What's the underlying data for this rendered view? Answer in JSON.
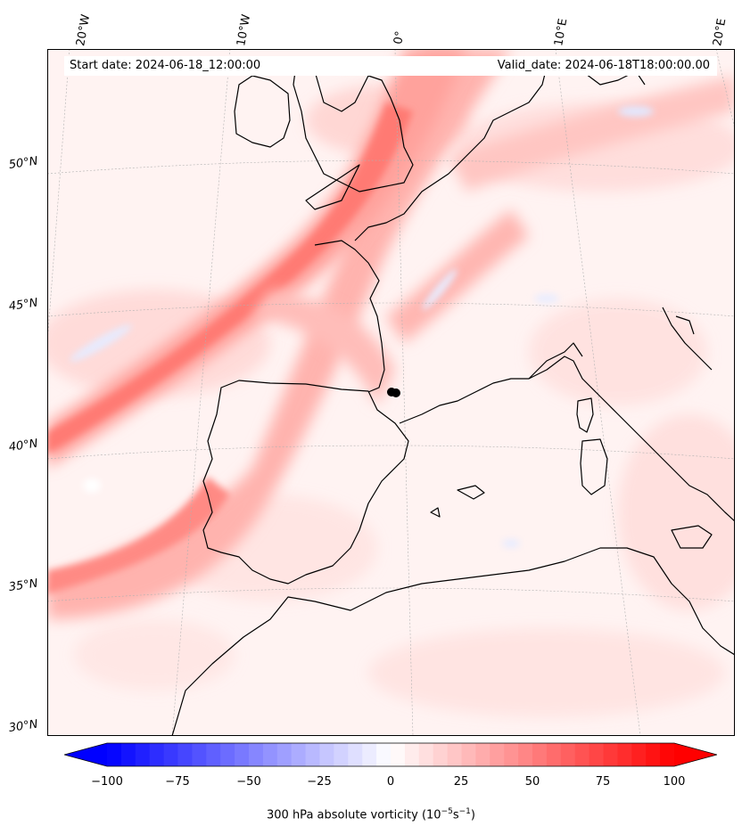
{
  "header": {
    "start_date": "Start date: 2024-06-18_12:00:00",
    "valid_date": "Valid_date: 2024-06-18T18:00:00.00"
  },
  "longitude_ticks": [
    "20°W",
    "10°W",
    "0°",
    "10°E",
    "20°E"
  ],
  "latitude_ticks": [
    "50°N",
    "45°N",
    "40°N",
    "35°N",
    "30°N"
  ],
  "colorbar": {
    "min": -100,
    "max": 100,
    "ticks": [
      "−100",
      "−75",
      "−50",
      "−25",
      "0",
      "25",
      "50",
      "75",
      "100"
    ],
    "label": "300 hPa absolute vorticity",
    "units_prefix": "(10",
    "units_exp1": "−5",
    "units_mid": "s",
    "units_exp2": "−1",
    "units_suffix": ")",
    "neg_color": "#0000ff",
    "pos_color": "#ff0000"
  }
}
